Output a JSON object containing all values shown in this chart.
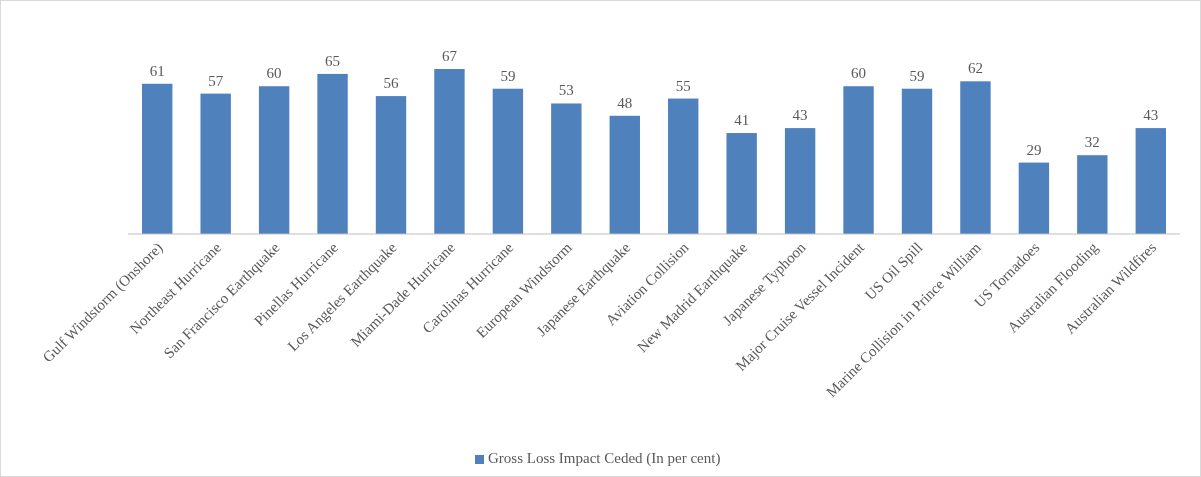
{
  "chart_data": {
    "type": "bar",
    "categories": [
      "Gulf Windstorm (Onshore)",
      "Northeast Hurricane",
      "San Francisco Earthquake",
      "Pinellas Hurricane",
      "Los Angeles Earthquake",
      "Miami-Dade Hurricane",
      "Carolinas Hurricane",
      "European Windstorm",
      "Japanese Earthquake",
      "Aviation Collision",
      "New Madrid Earthquake",
      "Japanese Typhoon",
      "Major Cruise Vessel Incident",
      "US Oil Spill",
      "Marine Collision in Prince William",
      "US Tornadoes",
      "Australian Flooding",
      "Australian Wildfires"
    ],
    "series": [
      {
        "name": "Gross Loss Impact Ceded (In per cent)",
        "color": "#4f81bd",
        "values": [
          61,
          57,
          60,
          65,
          56,
          67,
          59,
          53,
          48,
          55,
          41,
          43,
          60,
          59,
          62,
          29,
          32,
          43
        ]
      }
    ],
    "data_labels": true,
    "legend": "bottom",
    "grid": false,
    "tick_labels": "x"
  }
}
